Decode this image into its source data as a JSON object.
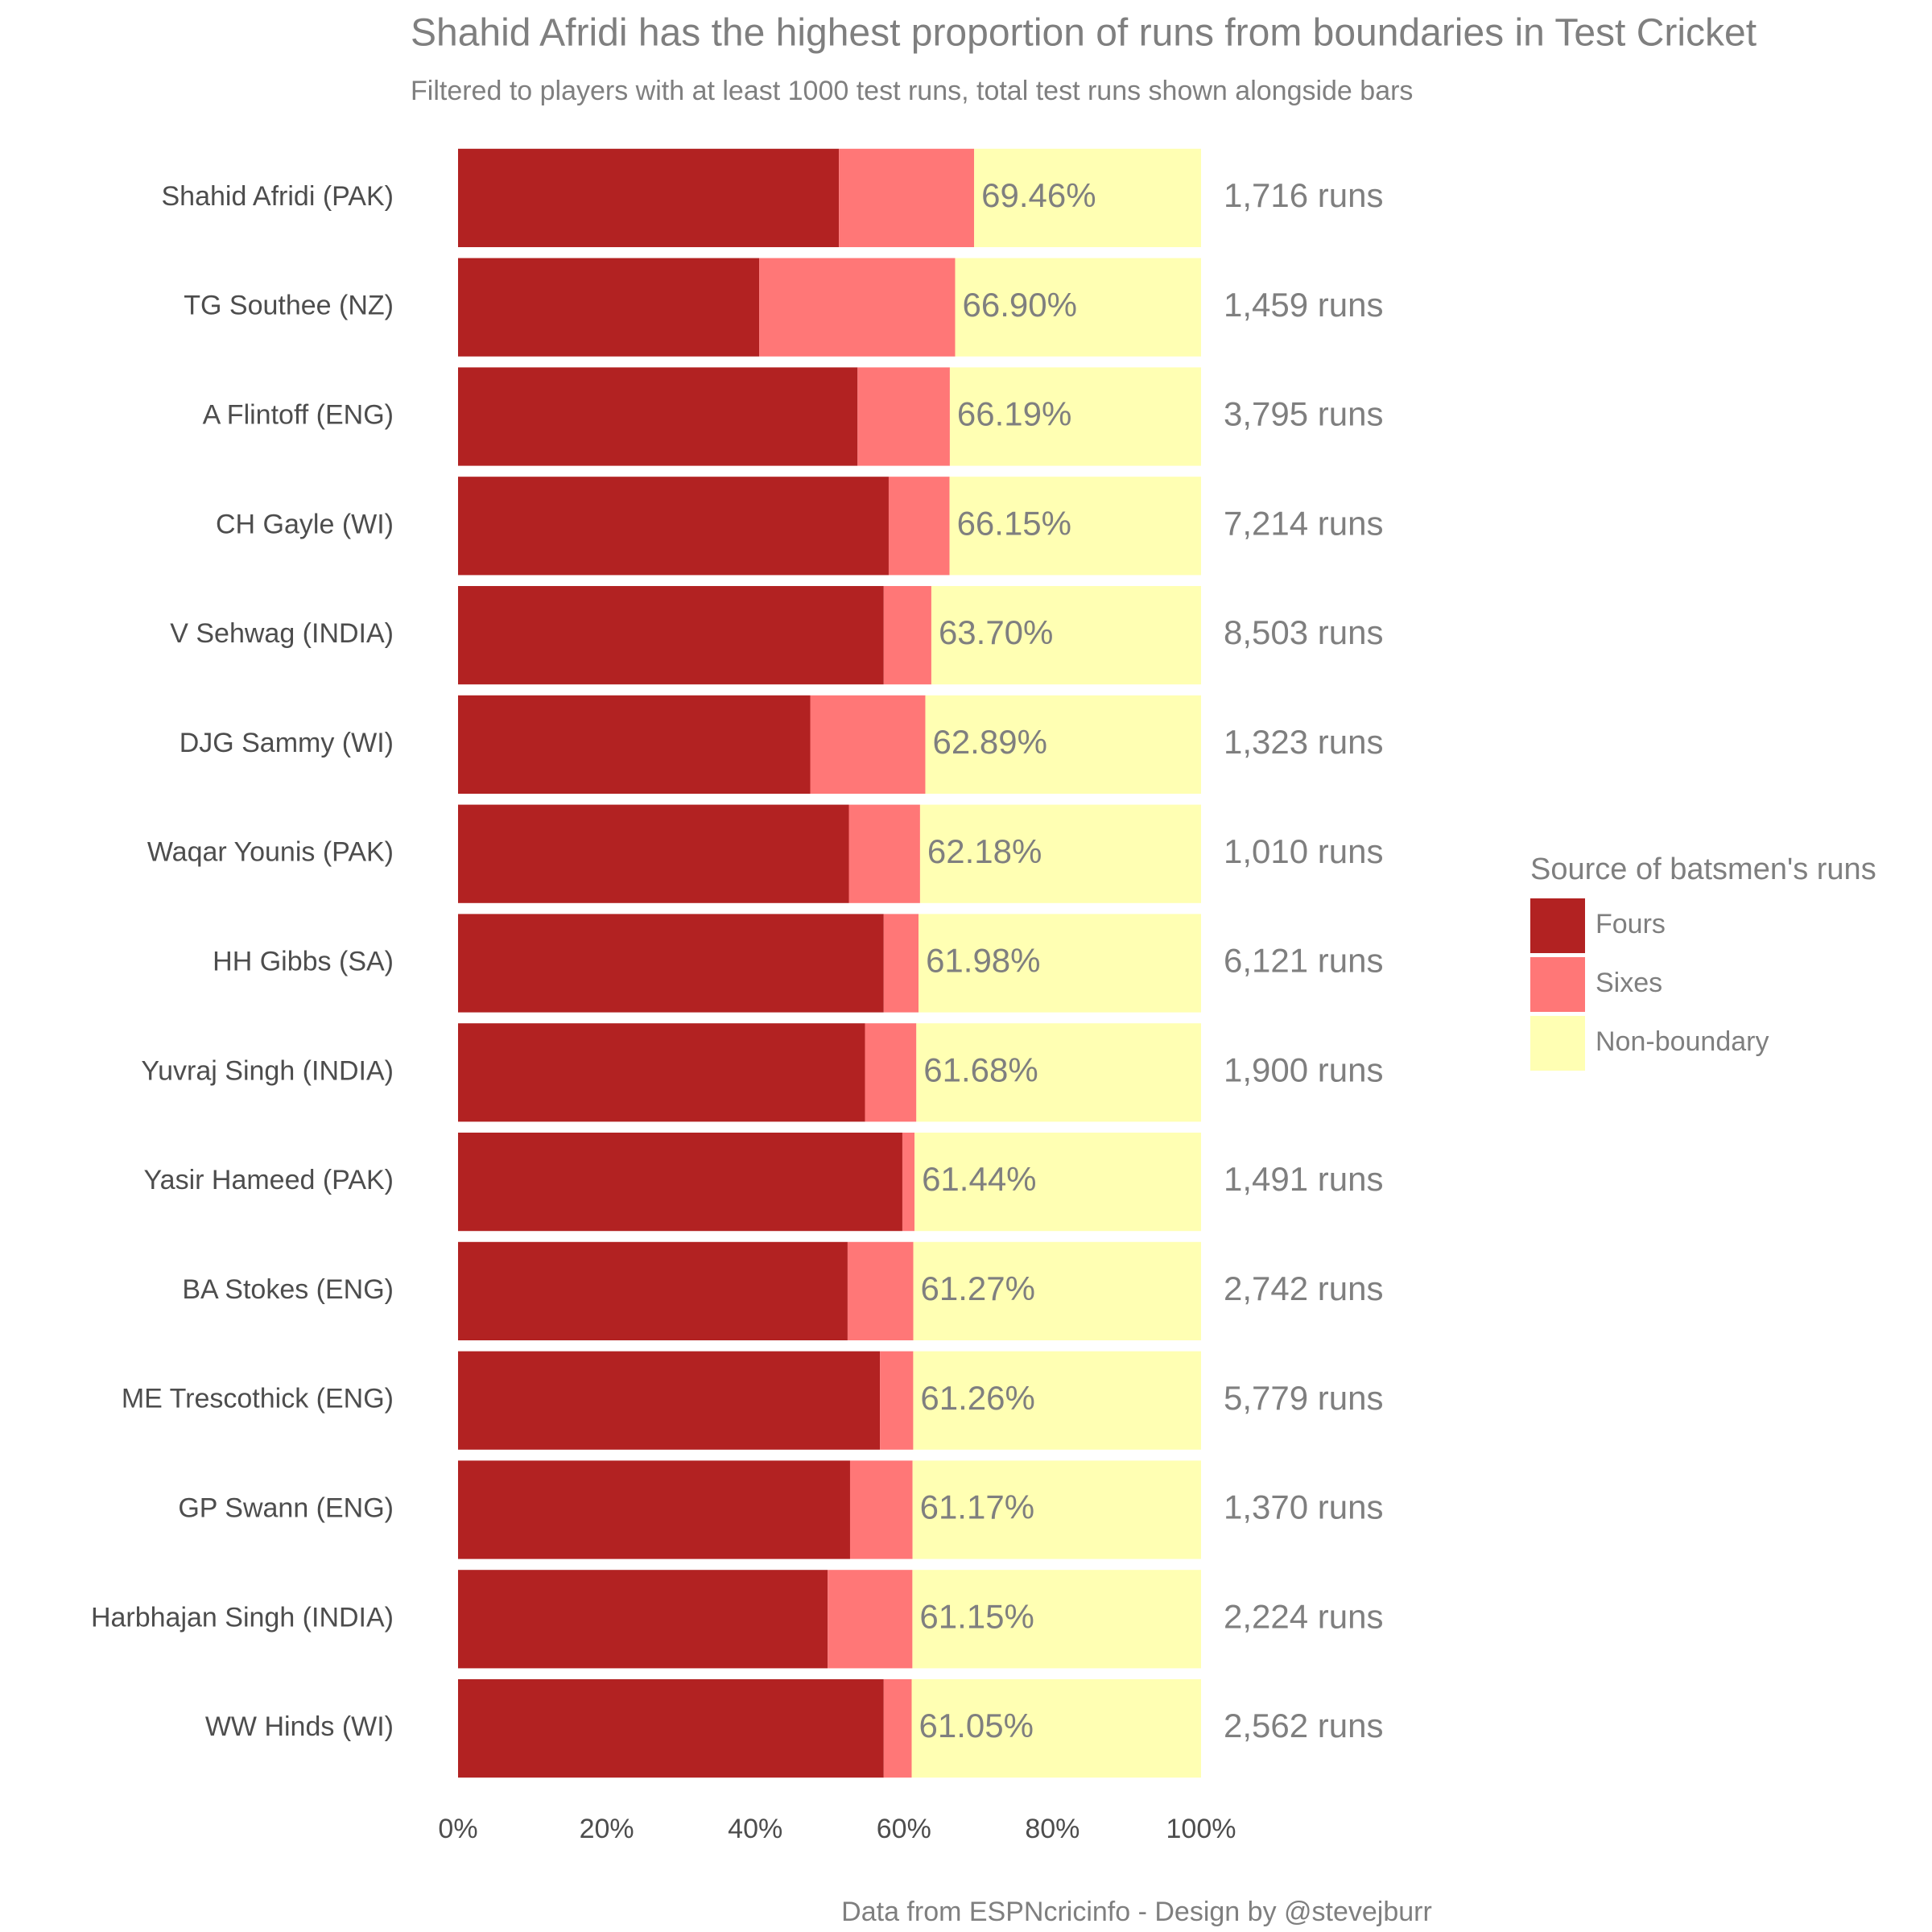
{
  "chart_data": {
    "type": "stacked-barh",
    "title": "Shahid Afridi has the highest proportion of runs from boundaries in Test Cricket",
    "subtitle": "Filtered to players with at least 1000 test runs, total test runs shown alongside bars",
    "caption": "Data from ESPNcricinfo - Design by @stevejburr",
    "legend_title": "Source of batsmen's runs",
    "legend_position": "right",
    "categories": [
      "Shahid Afridi (PAK)",
      "TG Southee (NZ)",
      "A Flintoff (ENG)",
      "CH Gayle (WI)",
      "V Sehwag (INDIA)",
      "DJG Sammy (WI)",
      "Waqar Younis (PAK)",
      "HH Gibbs (SA)",
      "Yuvraj Singh (INDIA)",
      "Yasir Hameed (PAK)",
      "BA Stokes (ENG)",
      "ME Trescothick (ENG)",
      "GP Swann (ENG)",
      "Harbhajan Singh (INDIA)",
      "WW Hinds (WI)"
    ],
    "series": [
      {
        "name": "Fours",
        "color": "#b22222",
        "values": [
          51.26,
          40.54,
          53.77,
          57.96,
          57.29,
          47.4,
          52.6,
          57.29,
          54.77,
          59.8,
          52.43,
          56.78,
          52.76,
          49.75,
          57.29
        ]
      },
      {
        "name": "Sixes",
        "color": "#ff7777",
        "values": [
          18.2,
          26.36,
          12.42,
          8.19,
          6.41,
          15.49,
          9.58,
          4.69,
          6.91,
          1.64,
          8.84,
          4.48,
          8.41,
          11.4,
          3.76
        ]
      },
      {
        "name": "Non-boundary",
        "color": "#ffffb3",
        "values": [
          30.54,
          33.1,
          33.81,
          33.85,
          36.3,
          37.11,
          37.82,
          38.02,
          38.32,
          38.56,
          38.73,
          38.74,
          38.83,
          38.85,
          38.95
        ]
      }
    ],
    "boundary_share": {
      "values": [
        69.46,
        66.9,
        66.19,
        66.15,
        63.7,
        62.89,
        62.18,
        61.98,
        61.68,
        61.44,
        61.27,
        61.26,
        61.17,
        61.15,
        61.05
      ],
      "value_labels": [
        "69.46%",
        "66.90%",
        "66.19%",
        "66.15%",
        "63.70%",
        "62.89%",
        "62.18%",
        "61.98%",
        "61.68%",
        "61.44%",
        "61.27%",
        "61.26%",
        "61.17%",
        "61.15%",
        "61.05%"
      ]
    },
    "total_runs": {
      "values": [
        1716,
        1459,
        3795,
        7214,
        8503,
        1323,
        1010,
        6121,
        1900,
        1491,
        2742,
        5779,
        1370,
        2224,
        2562
      ],
      "value_labels": [
        "1,716 runs",
        "1,459 runs",
        "3,795 runs",
        "7,214 runs",
        "8,503 runs",
        "1,323 runs",
        "1,010 runs",
        "6,121 runs",
        "1,900 runs",
        "1,491 runs",
        "2,742 runs",
        "5,779 runs",
        "1,370 runs",
        "2,224 runs",
        "2,562 runs"
      ]
    },
    "xlim": [
      0,
      100
    ],
    "xticks": [
      {
        "value": 0,
        "label": "0%"
      },
      {
        "value": 20,
        "label": "20%"
      },
      {
        "value": 40,
        "label": "40%"
      },
      {
        "value": 60,
        "label": "60%"
      },
      {
        "value": 80,
        "label": "80%"
      },
      {
        "value": 100,
        "label": "100%"
      }
    ],
    "grid": false
  }
}
